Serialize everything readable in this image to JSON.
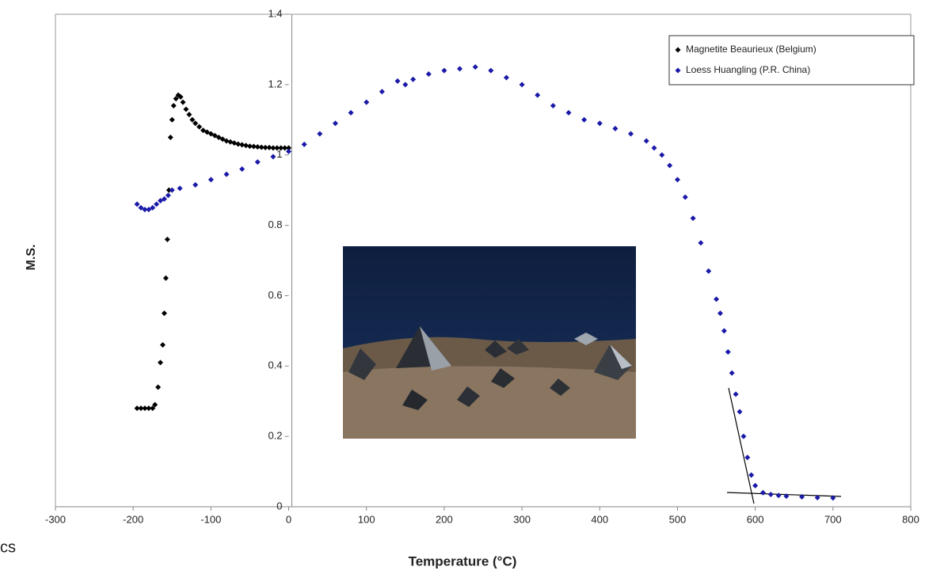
{
  "chart_data": {
    "type": "scatter",
    "x_label": "Temperature (°C)",
    "y_label": "M.S.",
    "xlim": [
      -300,
      800
    ],
    "xticks": [
      -300,
      -200,
      -100,
      0,
      100,
      200,
      300,
      400,
      500,
      600,
      700,
      800
    ],
    "ylim": [
      0,
      1.4
    ],
    "yticks": [
      0,
      0.2,
      0.4,
      0.6,
      0.8,
      1,
      1.2,
      1.4
    ],
    "grid": false,
    "legend": "upper right",
    "series": [
      {
        "name": "Magnetite Beaurieux (Belgium)",
        "color": "#000000",
        "x": [
          -195,
          -190,
          -185,
          -180,
          -175,
          -172,
          -168,
          -165,
          -162,
          -160,
          -158,
          -156,
          -154,
          -152,
          -150,
          -148,
          -145,
          -142,
          -139,
          -136,
          -132,
          -128,
          -124,
          -120,
          -115,
          -110,
          -105,
          -100,
          -95,
          -90,
          -85,
          -80,
          -75,
          -70,
          -65,
          -60,
          -55,
          -50,
          -45,
          -40,
          -35,
          -30,
          -25,
          -20,
          -15,
          -10,
          -5,
          0
        ],
        "values": [
          0.28,
          0.28,
          0.28,
          0.28,
          0.28,
          0.29,
          0.34,
          0.41,
          0.46,
          0.55,
          0.65,
          0.76,
          0.9,
          1.05,
          1.1,
          1.14,
          1.16,
          1.17,
          1.165,
          1.15,
          1.13,
          1.115,
          1.1,
          1.09,
          1.08,
          1.07,
          1.065,
          1.06,
          1.055,
          1.05,
          1.045,
          1.04,
          1.037,
          1.034,
          1.031,
          1.029,
          1.027,
          1.025,
          1.024,
          1.023,
          1.022,
          1.021,
          1.021,
          1.02,
          1.02,
          1.02,
          1.02,
          1.02
        ]
      },
      {
        "name": "Loess Huangling (P.R. China)",
        "color": "#1a1aa8",
        "x": [
          -195,
          -190,
          -185,
          -180,
          -175,
          -170,
          -165,
          -160,
          -155,
          -150,
          -140,
          -120,
          -100,
          -80,
          -60,
          -40,
          -20,
          0,
          20,
          40,
          60,
          80,
          100,
          120,
          140,
          150,
          160,
          180,
          200,
          220,
          240,
          260,
          280,
          300,
          320,
          340,
          360,
          380,
          400,
          420,
          440,
          460,
          470,
          480,
          490,
          500,
          510,
          520,
          530,
          540,
          550,
          555,
          560,
          565,
          570,
          575,
          580,
          585,
          590,
          595,
          600,
          610,
          620,
          630,
          640,
          660,
          680,
          700
        ],
        "values": [
          0.86,
          0.85,
          0.845,
          0.845,
          0.85,
          0.86,
          0.87,
          0.875,
          0.885,
          0.9,
          0.905,
          0.915,
          0.93,
          0.945,
          0.96,
          0.98,
          0.995,
          1.01,
          1.03,
          1.06,
          1.09,
          1.12,
          1.15,
          1.18,
          1.21,
          1.2,
          1.215,
          1.23,
          1.24,
          1.245,
          1.25,
          1.24,
          1.22,
          1.2,
          1.17,
          1.14,
          1.12,
          1.1,
          1.09,
          1.075,
          1.06,
          1.04,
          1.02,
          1.0,
          0.97,
          0.93,
          0.88,
          0.82,
          0.75,
          0.67,
          0.59,
          0.55,
          0.5,
          0.44,
          0.38,
          0.32,
          0.27,
          0.2,
          0.14,
          0.09,
          0.06,
          0.04,
          0.035,
          0.032,
          0.03,
          0.028,
          0.026,
          0.025
        ]
      }
    ]
  },
  "overlay_text": "cs"
}
